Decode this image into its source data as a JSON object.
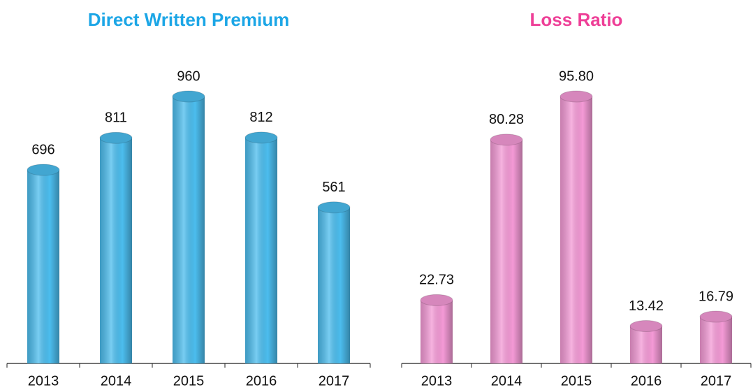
{
  "chart_data": [
    {
      "type": "bar",
      "title": "Direct Written Premium",
      "categories": [
        "2013",
        "2014",
        "2015",
        "2016",
        "2017"
      ],
      "values": [
        696,
        811,
        960,
        812,
        561
      ],
      "color": "#4cbdee",
      "title_color": "#1ca6e6"
    },
    {
      "type": "bar",
      "title": "Loss Ratio",
      "categories": [
        "2013",
        "2014",
        "2015",
        "2016",
        "2017"
      ],
      "values": [
        22.73,
        80.28,
        95.8,
        13.42,
        16.79
      ],
      "value_labels": [
        "22.73",
        "80.28",
        "95.80",
        "13.42",
        "16.79"
      ],
      "color": "#f49ad6",
      "title_color": "#ee3f97"
    }
  ]
}
